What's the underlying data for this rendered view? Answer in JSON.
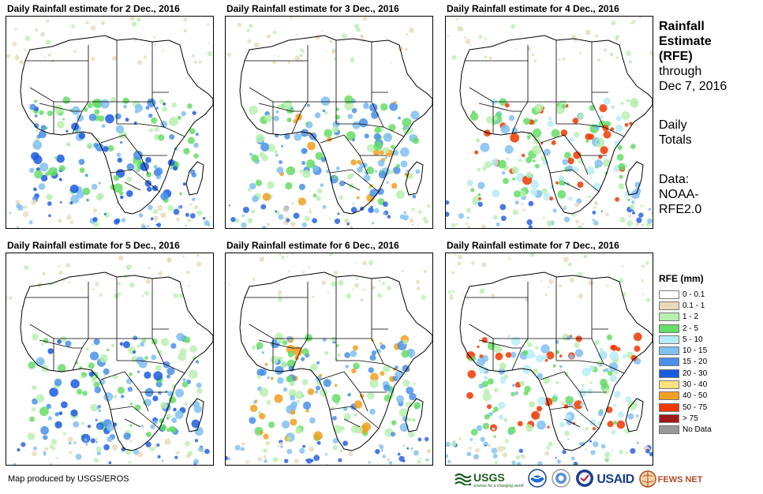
{
  "panels": [
    {
      "title": "Daily Rainfall estimate for 2 Dec., 2016"
    },
    {
      "title": "Daily Rainfall estimate for 3 Dec., 2016"
    },
    {
      "title": "Daily Rainfall estimate for 4 Dec., 2016"
    },
    {
      "title": "Daily Rainfall estimate for 5 Dec., 2016"
    },
    {
      "title": "Daily Rainfall estimate for 6 Dec., 2016"
    },
    {
      "title": "Daily Rainfall estimate for 7 Dec., 2016"
    }
  ],
  "side": {
    "title_line1": "Rainfall",
    "title_line2": "Estimate",
    "title_line3": "(RFE)",
    "through": "through",
    "date": "Dec 7, 2016",
    "daily": "Daily",
    "totals": "Totals",
    "data_label": "Data:",
    "data_src1": "NOAA-",
    "data_src2": "RFE2.0"
  },
  "legend": {
    "title": "RFE (mm)",
    "items": [
      {
        "label": "0 - 0.1",
        "color": "#ffffff"
      },
      {
        "label": "0.1 - 1",
        "color": "#e8d9b8"
      },
      {
        "label": "1 - 2",
        "color": "#b8f0b0"
      },
      {
        "label": "2 - 5",
        "color": "#66dd66"
      },
      {
        "label": "5 - 10",
        "color": "#b8ecf4"
      },
      {
        "label": "10 - 15",
        "color": "#80c0f0"
      },
      {
        "label": "15 - 20",
        "color": "#4a90e8"
      },
      {
        "label": "20 - 30",
        "color": "#1a5ae0"
      },
      {
        "label": "30 - 40",
        "color": "#ffe080"
      },
      {
        "label": "40 - 50",
        "color": "#f0a020"
      },
      {
        "label": "50 - 75",
        "color": "#f03800"
      },
      {
        "label": "> 75",
        "color": "#a01818"
      },
      {
        "label": "No Data",
        "color": "#999999"
      }
    ]
  },
  "credit": "Map produced by USGS/EROS",
  "logos": {
    "usgs": "USGS",
    "usgs_tagline": "science for a changing world",
    "usaid": "USAID",
    "fews": "FEWS NET"
  }
}
